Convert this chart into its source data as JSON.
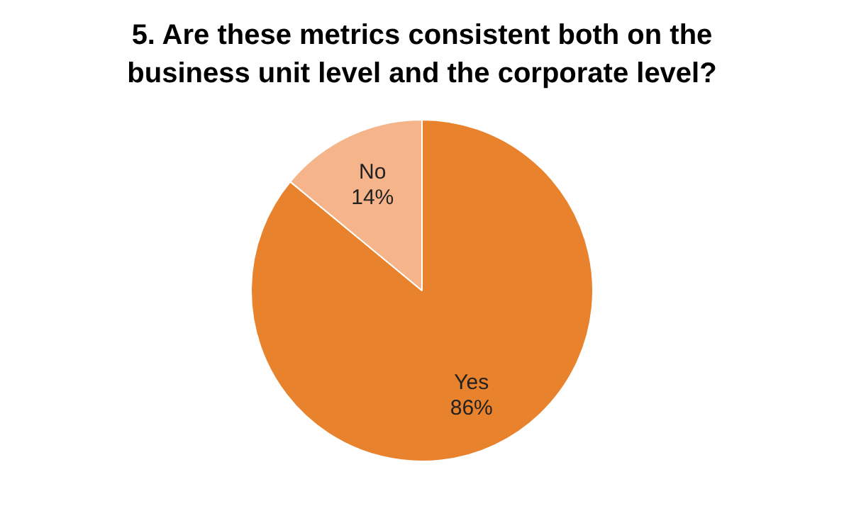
{
  "chart_data": {
    "type": "pie",
    "title": "5. Are these metrics consistent both on the business unit level and the corporate level?",
    "categories": [
      "Yes",
      "No"
    ],
    "values": [
      86,
      14
    ],
    "colors": [
      "#e8822c",
      "#f5b48a"
    ],
    "value_labels": [
      "86%",
      "14%"
    ],
    "legend": false
  }
}
